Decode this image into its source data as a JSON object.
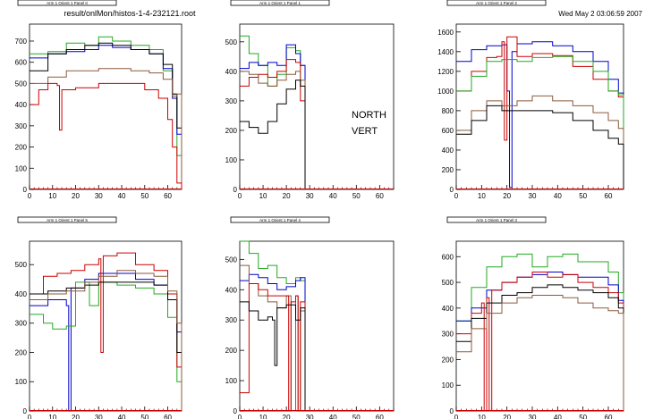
{
  "header": {
    "file_label": "result/onlMon/histos-1-4-232121.root",
    "date_label": "Wed May  2 03:06:59 2007"
  },
  "annotation": {
    "line1": "NORTH",
    "line2": "VERT"
  },
  "series_colors": {
    "black": "#000000",
    "red": "#cc0000",
    "green": "#22aa22",
    "blue": "#0000cc",
    "brown": "#8b5a3c"
  },
  "chart_data": [
    {
      "type": "line",
      "title": "Arm 1 Orient 1 Panel 0",
      "xlim": [
        0,
        66
      ],
      "ylim": [
        0,
        780
      ],
      "xticks": [
        0,
        10,
        20,
        30,
        40,
        50,
        60
      ],
      "yticks": [
        0,
        100,
        200,
        300,
        400,
        500,
        600,
        700
      ],
      "series": [
        {
          "color": "green",
          "x": [
            0,
            8,
            16,
            24,
            30,
            36,
            44,
            52,
            58,
            62,
            64
          ],
          "y": [
            640,
            650,
            690,
            680,
            720,
            700,
            680,
            660,
            560,
            450,
            160
          ]
        },
        {
          "color": "blue",
          "x": [
            0,
            8,
            16,
            24,
            30,
            36,
            44,
            52,
            58,
            62,
            64
          ],
          "y": [
            620,
            640,
            650,
            660,
            680,
            670,
            660,
            640,
            570,
            430,
            260
          ]
        },
        {
          "color": "black",
          "x": [
            0,
            8,
            16,
            24,
            30,
            36,
            44,
            52,
            58,
            62,
            64
          ],
          "y": [
            560,
            640,
            660,
            680,
            690,
            680,
            660,
            640,
            590,
            450,
            290
          ]
        },
        {
          "color": "brown",
          "x": [
            0,
            8,
            16,
            24,
            30,
            36,
            44,
            52,
            58,
            62,
            64
          ],
          "y": [
            500,
            530,
            560,
            560,
            570,
            570,
            560,
            550,
            520,
            440,
            450
          ]
        },
        {
          "color": "red",
          "x": [
            0,
            4,
            8,
            12,
            13,
            14,
            20,
            30,
            40,
            50,
            56,
            60,
            62,
            64
          ],
          "y": [
            400,
            470,
            500,
            490,
            280,
            470,
            480,
            500,
            500,
            470,
            430,
            330,
            200,
            30
          ]
        }
      ]
    },
    {
      "type": "line",
      "title": "Arm 1 Orient 1 Panel 1",
      "xlim": [
        0,
        66
      ],
      "ylim": [
        0,
        560
      ],
      "xticks": [
        0,
        10,
        20,
        30,
        40,
        50,
        60
      ],
      "yticks": [
        0,
        100,
        200,
        300,
        400,
        500
      ],
      "series": [
        {
          "color": "green",
          "x": [
            0,
            4,
            8,
            12,
            16,
            20,
            24,
            26
          ],
          "y": [
            520,
            460,
            420,
            350,
            390,
            480,
            470,
            420
          ]
        },
        {
          "color": "blue",
          "x": [
            0,
            4,
            8,
            12,
            16,
            20,
            24,
            26
          ],
          "y": [
            410,
            430,
            420,
            430,
            420,
            490,
            460,
            420
          ]
        },
        {
          "color": "red",
          "x": [
            0,
            4,
            8,
            12,
            16,
            20,
            24,
            26
          ],
          "y": [
            350,
            380,
            390,
            380,
            400,
            440,
            430,
            300
          ]
        },
        {
          "color": "brown",
          "x": [
            0,
            4,
            8,
            12,
            16,
            20,
            24,
            26
          ],
          "y": [
            400,
            390,
            360,
            350,
            370,
            390,
            400,
            370
          ]
        },
        {
          "color": "black",
          "x": [
            0,
            4,
            8,
            12,
            16,
            20,
            24,
            26
          ],
          "y": [
            230,
            210,
            190,
            230,
            290,
            340,
            370,
            350
          ]
        }
      ]
    },
    {
      "type": "line",
      "title": "Arm 1 Orient 1 Panel 2",
      "xlim": [
        0,
        66
      ],
      "ylim": [
        0,
        1680
      ],
      "xticks": [
        0,
        10,
        20,
        30,
        40,
        50,
        60
      ],
      "yticks": [
        0,
        200,
        400,
        600,
        800,
        1000,
        1200,
        1400,
        1600
      ],
      "series": [
        {
          "color": "blue",
          "x": [
            0,
            6,
            12,
            18,
            20,
            21,
            22,
            24,
            30,
            38,
            46,
            54,
            60,
            64
          ],
          "y": [
            1300,
            1420,
            1460,
            1470,
            1000,
            20,
            1400,
            1480,
            1500,
            1460,
            1400,
            1300,
            1120,
            980
          ]
        },
        {
          "color": "red",
          "x": [
            0,
            6,
            12,
            16,
            18,
            19,
            20,
            24,
            30,
            38,
            46,
            54,
            60,
            64
          ],
          "y": [
            1000,
            1200,
            1340,
            1350,
            1500,
            500,
            1550,
            1350,
            1380,
            1360,
            1250,
            1120,
            1000,
            940
          ]
        },
        {
          "color": "green",
          "x": [
            0,
            6,
            12,
            18,
            24,
            30,
            38,
            46,
            54,
            60,
            64
          ],
          "y": [
            1000,
            1150,
            1300,
            1320,
            1300,
            1340,
            1350,
            1300,
            1200,
            1000,
            960
          ]
        },
        {
          "color": "brown",
          "x": [
            0,
            6,
            12,
            18,
            24,
            30,
            38,
            46,
            54,
            60,
            64
          ],
          "y": [
            600,
            800,
            900,
            850,
            900,
            950,
            900,
            850,
            780,
            700,
            620
          ]
        },
        {
          "color": "black",
          "x": [
            0,
            6,
            12,
            18,
            24,
            30,
            38,
            46,
            54,
            60,
            64
          ],
          "y": [
            560,
            700,
            850,
            800,
            800,
            800,
            780,
            700,
            600,
            520,
            460
          ]
        }
      ]
    },
    {
      "type": "line",
      "title": "Arm 1 Orient 1 Panel 5",
      "xlim": [
        0,
        66
      ],
      "ylim": [
        0,
        580
      ],
      "xticks": [
        0,
        10,
        20,
        30,
        40,
        50,
        60
      ],
      "yticks": [
        0,
        100,
        200,
        300,
        400,
        500
      ],
      "series": [
        {
          "color": "blue",
          "x": [
            0,
            8,
            16,
            17,
            18,
            24,
            30,
            38,
            46,
            54,
            60,
            64
          ],
          "y": [
            360,
            380,
            360,
            0,
            420,
            450,
            470,
            470,
            450,
            430,
            380,
            270
          ]
        },
        {
          "color": "green",
          "x": [
            0,
            6,
            10,
            16,
            20,
            26,
            30,
            38,
            46,
            54,
            60,
            64
          ],
          "y": [
            330,
            300,
            280,
            290,
            440,
            360,
            440,
            430,
            420,
            400,
            320,
            100
          ]
        },
        {
          "color": "red",
          "x": [
            0,
            6,
            12,
            18,
            24,
            30,
            31,
            32,
            38,
            46,
            54,
            60,
            64
          ],
          "y": [
            400,
            460,
            470,
            480,
            500,
            520,
            200,
            530,
            540,
            500,
            480,
            400,
            150
          ]
        },
        {
          "color": "black",
          "x": [
            0,
            8,
            16,
            24,
            30,
            38,
            46,
            54,
            60,
            64
          ],
          "y": [
            400,
            410,
            420,
            430,
            440,
            440,
            440,
            430,
            380,
            200
          ]
        },
        {
          "color": "brown",
          "x": [
            0,
            8,
            16,
            24,
            30,
            38,
            46,
            54,
            60,
            64
          ],
          "y": [
            380,
            400,
            410,
            440,
            460,
            480,
            470,
            460,
            410,
            300
          ]
        }
      ]
    },
    {
      "type": "line",
      "title": "Arm 1 Orient 1 Panel 4",
      "xlim": [
        0,
        66
      ],
      "ylim": [
        0,
        560
      ],
      "xticks": [
        0,
        10,
        20,
        30,
        40,
        50,
        60
      ],
      "yticks": [
        0,
        100,
        200,
        300,
        400,
        500
      ],
      "series": [
        {
          "color": "green",
          "x": [
            0,
            4,
            8,
            12,
            16,
            20,
            24,
            26
          ],
          "y": [
            560,
            520,
            470,
            480,
            440,
            420,
            440,
            430
          ]
        },
        {
          "color": "blue",
          "x": [
            0,
            4,
            8,
            12,
            16,
            20,
            24,
            26
          ],
          "y": [
            430,
            450,
            440,
            420,
            400,
            410,
            430,
            440
          ]
        },
        {
          "color": "brown",
          "x": [
            0,
            4,
            8,
            12,
            16,
            20,
            22,
            24,
            25,
            26
          ],
          "y": [
            480,
            420,
            380,
            360,
            340,
            380,
            0,
            380,
            0,
            330
          ]
        },
        {
          "color": "red",
          "x": [
            0,
            4,
            8,
            12,
            16,
            20,
            21,
            22,
            24,
            25,
            26
          ],
          "y": [
            60,
            420,
            400,
            380,
            380,
            380,
            0,
            360,
            380,
            0,
            360
          ]
        },
        {
          "color": "black",
          "x": [
            0,
            4,
            8,
            12,
            14,
            15,
            16,
            20,
            24,
            26
          ],
          "y": [
            360,
            330,
            300,
            310,
            300,
            150,
            340,
            350,
            300,
            340
          ]
        }
      ]
    },
    {
      "type": "line",
      "title": "Arm 1 Orient 1 Panel 3",
      "xlim": [
        0,
        66
      ],
      "ylim": [
        0,
        660
      ],
      "xticks": [
        0,
        10,
        20,
        30,
        40,
        50,
        60
      ],
      "yticks": [
        0,
        100,
        200,
        300,
        400,
        500,
        600
      ],
      "series": [
        {
          "color": "green",
          "x": [
            0,
            6,
            12,
            18,
            24,
            30,
            36,
            42,
            48,
            54,
            60,
            64
          ],
          "y": [
            350,
            480,
            560,
            600,
            610,
            560,
            600,
            610,
            580,
            580,
            540,
            460
          ]
        },
        {
          "color": "blue",
          "x": [
            0,
            6,
            12,
            18,
            24,
            30,
            36,
            42,
            48,
            54,
            60,
            64
          ],
          "y": [
            350,
            400,
            470,
            500,
            520,
            530,
            540,
            530,
            520,
            520,
            490,
            430
          ]
        },
        {
          "color": "red",
          "x": [
            0,
            6,
            10,
            11,
            12,
            13,
            14,
            18,
            24,
            30,
            36,
            42,
            48,
            54,
            60,
            64
          ],
          "y": [
            300,
            380,
            420,
            0,
            440,
            0,
            470,
            500,
            520,
            540,
            520,
            530,
            500,
            480,
            460,
            420
          ]
        },
        {
          "color": "black",
          "x": [
            0,
            6,
            12,
            18,
            24,
            30,
            36,
            42,
            48,
            54,
            60,
            64
          ],
          "y": [
            270,
            360,
            420,
            450,
            460,
            480,
            490,
            480,
            470,
            460,
            440,
            400
          ]
        },
        {
          "color": "brown",
          "x": [
            0,
            6,
            12,
            18,
            24,
            30,
            36,
            42,
            48,
            54,
            60,
            64
          ],
          "y": [
            230,
            320,
            380,
            420,
            440,
            450,
            450,
            440,
            420,
            400,
            390,
            380
          ]
        }
      ]
    }
  ]
}
